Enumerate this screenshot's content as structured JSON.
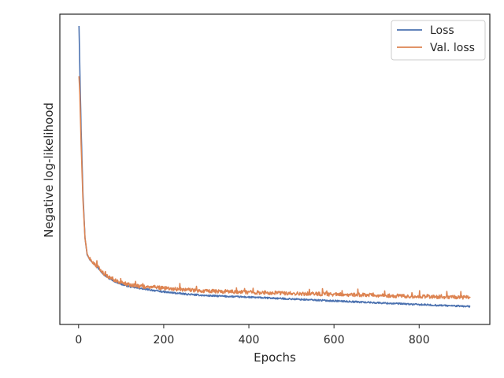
{
  "chart_data": {
    "type": "line",
    "title": "",
    "xlabel": "Epochs",
    "ylabel": "Negative log-likelihood",
    "xlim": [
      -44,
      966
    ],
    "ylim": [
      0.0,
      1.0
    ],
    "x_ticks": [
      0,
      200,
      400,
      600,
      800
    ],
    "y_ticks": [],
    "grid": false,
    "legend_position": "top-right",
    "series": [
      {
        "name": "Loss",
        "color": "#4c72b0",
        "x": [
          1,
          3,
          6,
          10,
          15,
          20,
          25,
          30,
          40,
          50,
          60,
          70,
          80,
          100,
          120,
          150,
          200,
          250,
          300,
          400,
          500,
          600,
          700,
          800,
          920
        ],
        "y": [
          0.962,
          0.82,
          0.63,
          0.43,
          0.28,
          0.225,
          0.212,
          0.205,
          0.19,
          0.176,
          0.16,
          0.15,
          0.142,
          0.13,
          0.122,
          0.115,
          0.105,
          0.098,
          0.093,
          0.088,
          0.082,
          0.076,
          0.07,
          0.064,
          0.058
        ]
      },
      {
        "name": "Val. loss",
        "color": "#dd8452",
        "x": [
          1,
          3,
          6,
          10,
          15,
          20,
          25,
          30,
          40,
          50,
          60,
          70,
          80,
          100,
          120,
          150,
          200,
          250,
          300,
          400,
          500,
          600,
          700,
          800,
          920
        ],
        "y": [
          0.8,
          0.74,
          0.58,
          0.41,
          0.28,
          0.228,
          0.213,
          0.206,
          0.192,
          0.178,
          0.163,
          0.153,
          0.146,
          0.135,
          0.128,
          0.122,
          0.117,
          0.112,
          0.108,
          0.104,
          0.1,
          0.097,
          0.094,
          0.09,
          0.087
        ]
      }
    ]
  }
}
